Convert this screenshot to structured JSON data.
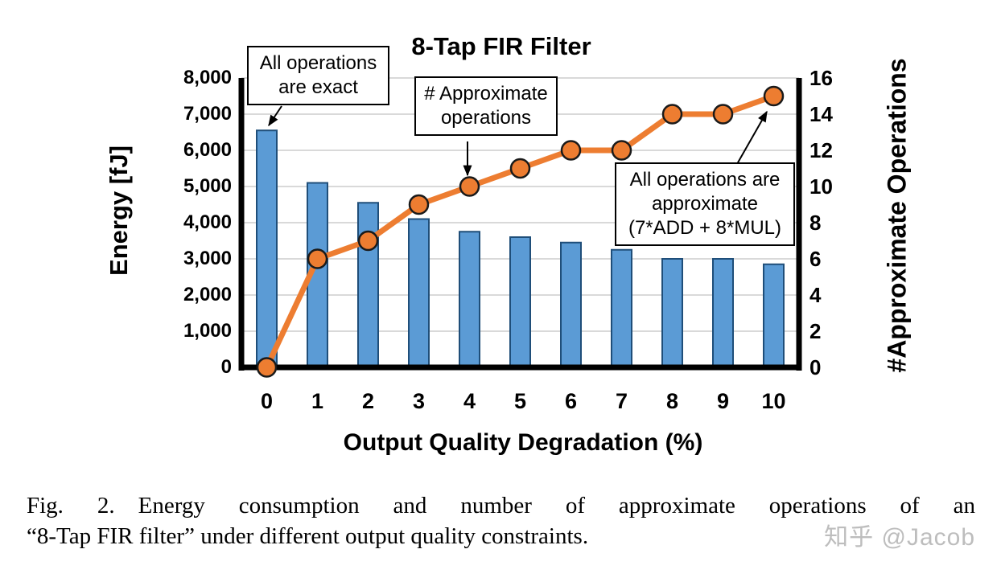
{
  "chart_data": {
    "type": "bar",
    "subtype": "combo-bar-line",
    "title": "8-Tap FIR Filter",
    "categories": [
      0,
      1,
      2,
      3,
      4,
      5,
      6,
      7,
      8,
      9,
      10
    ],
    "series": [
      {
        "name": "Energy",
        "type": "bar",
        "axis": "left",
        "values": [
          6550,
          5100,
          4550,
          4100,
          3750,
          3600,
          3450,
          3250,
          3000,
          3000,
          2850
        ],
        "fill_color": "#5B9BD5",
        "border_color": "#1F4E79"
      },
      {
        "name": "# Approximate operations",
        "type": "line",
        "axis": "right",
        "values": [
          0,
          6,
          7,
          9,
          10,
          11,
          12,
          12,
          14,
          14,
          15
        ],
        "line_color": "#ED7D31",
        "marker_fill": "#ED7D31",
        "marker_border": "#1a1a1a"
      }
    ],
    "left_axis": {
      "label": "Energy [fJ]",
      "min": 0,
      "max": 8000,
      "step": 1000,
      "tick_labels": [
        "8,000",
        "7,000",
        "6,000",
        "5,000",
        "4,000",
        "3,000",
        "2,000",
        "1,000",
        "0"
      ]
    },
    "right_axis": {
      "label": "#Approximate Operations",
      "min": 0,
      "max": 16,
      "step": 2,
      "tick_labels": [
        "16",
        "14",
        "12",
        "10",
        "8",
        "6",
        "4",
        "2",
        "0"
      ]
    },
    "x_axis": {
      "label": "Output Quality Degradation (%)",
      "tick_labels": [
        "0",
        "1",
        "2",
        "3",
        "4",
        "5",
        "6",
        "7",
        "8",
        "9",
        "10"
      ]
    },
    "grid": true,
    "grid_color": "#D9D9D9",
    "axis_color": "#000000",
    "legend_position": "none",
    "annotations": [
      {
        "text": "All operations\nare exact"
      },
      {
        "text": "# Approximate\noperations"
      },
      {
        "text": "All operations are\napproximate\n(7*ADD + 8*MUL)"
      }
    ]
  },
  "caption": {
    "line1": "Fig. 2. Energy consumption and number of approximate operations of an",
    "line2": "“8-Tap FIR filter” under different output quality constraints.",
    "watermark": "知乎 @Jacob"
  }
}
